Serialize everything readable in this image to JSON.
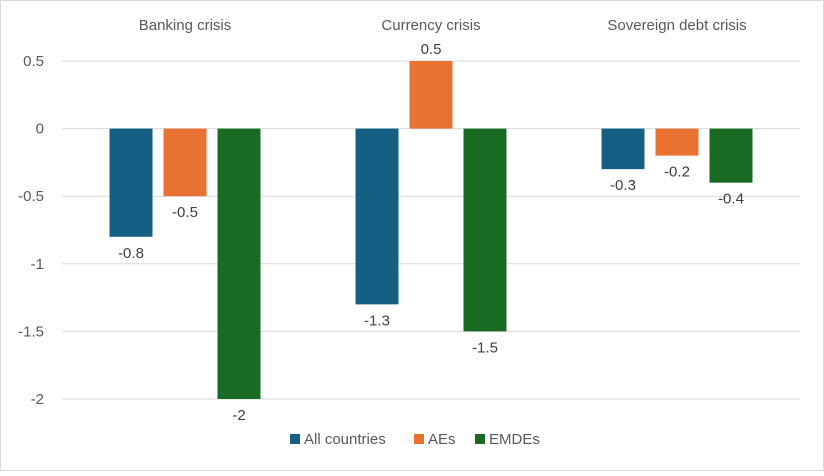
{
  "chart_data": {
    "type": "bar",
    "categories": [
      "Banking crisis",
      "Currency crisis",
      "Sovereign debt crisis"
    ],
    "series": [
      {
        "name": "All countries",
        "color": "#156082",
        "values": [
          -0.8,
          -1.3,
          -0.3
        ],
        "labels": [
          "-0.8",
          "-1.3",
          "-0.3"
        ]
      },
      {
        "name": "AEs",
        "color": "#E97132",
        "values": [
          -0.5,
          0.5,
          -0.2
        ],
        "labels": [
          "-0.5",
          "0.5",
          "-0.2"
        ]
      },
      {
        "name": "EMDEs",
        "color": "#196B24",
        "values": [
          -2,
          -1.5,
          -0.4
        ],
        "labels": [
          "-2",
          "-1.5",
          "-0.4"
        ]
      }
    ],
    "y_ticks": [
      "0.5",
      "0",
      "-0.5",
      "-1",
      "-1.5",
      "-2"
    ],
    "y_tick_values": [
      0.5,
      0,
      -0.5,
      -1,
      -1.5,
      -2
    ],
    "ylim": [
      -2,
      0.5
    ],
    "category_labels_position": "top",
    "grid": true,
    "legend_position": "bottom"
  }
}
